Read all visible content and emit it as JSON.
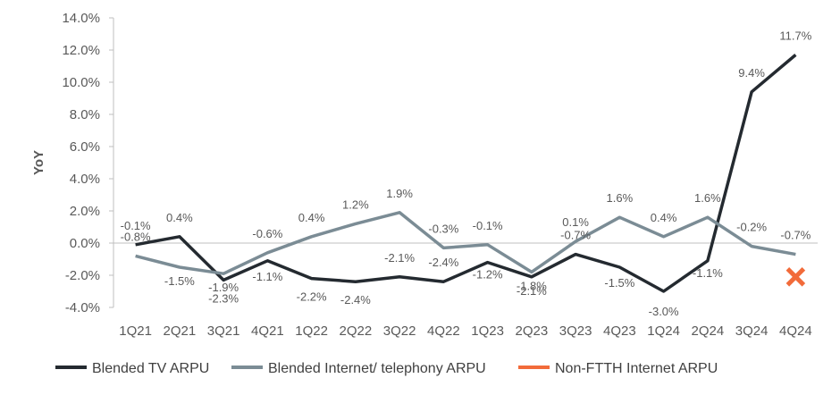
{
  "chart_data": {
    "type": "line",
    "title": "",
    "xlabel": "",
    "ylabel": "YoY",
    "ylim": [
      -4.0,
      14.0
    ],
    "ytick_step": 2.0,
    "ytick_labels": [
      "-4.0%",
      "-2.0%",
      "0.0%",
      "2.0%",
      "4.0%",
      "6.0%",
      "8.0%",
      "10.0%",
      "12.0%",
      "14.0%"
    ],
    "grid": false,
    "legend_position": "bottom",
    "categories": [
      "1Q21",
      "2Q21",
      "3Q21",
      "4Q21",
      "1Q22",
      "2Q22",
      "3Q22",
      "4Q22",
      "1Q23",
      "2Q23",
      "3Q23",
      "4Q23",
      "1Q24",
      "2Q24",
      "3Q24",
      "4Q24"
    ],
    "series": [
      {
        "name": "Blended TV ARPU",
        "color": "#242a30",
        "values": [
          -0.1,
          0.4,
          -2.3,
          -1.1,
          -2.2,
          -2.4,
          -2.1,
          -2.4,
          -1.2,
          -2.1,
          -0.7,
          -1.5,
          -3.0,
          -1.1,
          9.4,
          11.7
        ],
        "labels": [
          "-0.1%",
          "0.4%",
          "-2.3%",
          "-1.1%",
          "-2.2%",
          "-2.4%",
          "-2.1%",
          "-2.4%",
          "-1.2%",
          "-2.1%",
          "-0.7%",
          "-1.5%",
          "-3.0%",
          "-1.1%",
          "9.4%",
          "11.7%"
        ]
      },
      {
        "name": "Blended Internet/ telephony ARPU",
        "color": "#7b8c95",
        "values": [
          -0.8,
          -1.5,
          -1.9,
          -0.6,
          0.4,
          1.2,
          1.9,
          -0.3,
          -0.1,
          -1.8,
          0.1,
          1.6,
          0.4,
          1.6,
          -0.2,
          -0.7
        ],
        "labels": [
          "-0.8%",
          "-1.5%",
          "-1.9%",
          "-0.6%",
          "0.4%",
          "1.2%",
          "1.9%",
          "-0.3%",
          "-0.1%",
          "-1.8%",
          "0.1%",
          "1.6%",
          "0.4%",
          "1.6%",
          "-0.2%",
          "-0.7%"
        ]
      },
      {
        "name": "Non-FTTH Internet ARPU",
        "color": "#f26b3a",
        "marker": "x",
        "marker_icon": "cross-marker-icon",
        "values": [
          null,
          null,
          null,
          null,
          null,
          null,
          null,
          null,
          null,
          null,
          null,
          null,
          null,
          null,
          null,
          -2.1
        ]
      }
    ]
  }
}
